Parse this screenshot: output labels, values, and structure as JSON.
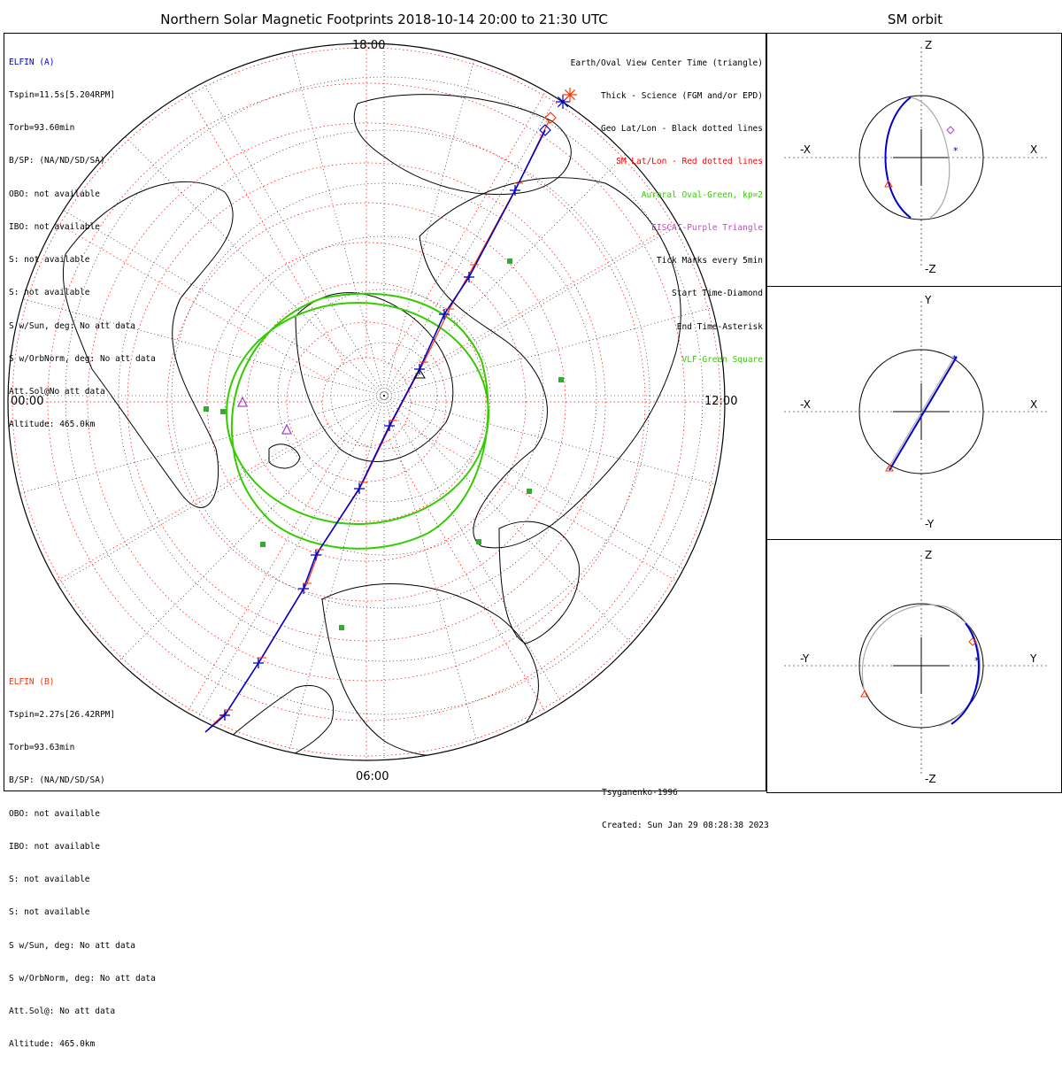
{
  "title": "Northern Solar Magnetic Footprints 2018-10-14 20:00 to 21:30 UTC",
  "orbit_title": "SM orbit",
  "elfin_a": {
    "name": "ELFIN (A)",
    "lines": [
      "Tspin=11.5s[5.204RPM]",
      "Torb=93.60min",
      "B/SP: (NA/ND/SD/SA)",
      "OBO: not available",
      "IBO: not available",
      "S: not available",
      "S: not available",
      "S w/Sun, deg: No att data",
      "S w/OrbNorm, deg: No att data",
      "Att.Sol@No att data",
      "Altitude: 465.0km"
    ]
  },
  "elfin_b": {
    "name": "ELFIN (B)",
    "lines": [
      "Tspin=2.27s[26.42RPM]",
      "Torb=93.63min",
      "B/SP: (NA/ND/SD/SA)",
      "OBO: not available",
      "IBO: not available",
      "S: not available",
      "S: not available",
      "S w/Sun, deg: No att data",
      "S w/OrbNorm, deg: No att data",
      "Att.Sol@: No att data",
      "Altitude: 465.0km"
    ]
  },
  "legend": [
    {
      "text": "Earth/Oval View Center Time (triangle)",
      "color": "#000000"
    },
    {
      "text": "Thick - Science (FGM and/or EPD)",
      "color": "#000000"
    },
    {
      "text": "Geo Lat/Lon - Black dotted lines",
      "color": "#000000"
    },
    {
      "text": "SM Lat/Lon - Red dotted lines",
      "color": "#ff0000"
    },
    {
      "text": "Auroral Oval-Green, kp=2",
      "color": "#33cc00"
    },
    {
      "text": "EISCAT-Purple Triangle",
      "color": "#cc44cc"
    },
    {
      "text": "Tick Marks every 5min",
      "color": "#000000"
    },
    {
      "text": "Start Time-Diamond",
      "color": "#000000"
    },
    {
      "text": "End Time-Asterisk",
      "color": "#000000"
    },
    {
      "text": "VLF-Green Square",
      "color": "#33cc00"
    }
  ],
  "mlt_labels": {
    "top": "18:00",
    "left": "00:00",
    "right": "12:00",
    "bottom": "06:00"
  },
  "footer": {
    "model": "Tsyganenko-1996",
    "created": "Created: Sun Jan 29 08:28:38 2023"
  },
  "orbit_panels": [
    {
      "up": "Z",
      "down": "-Z",
      "left": "-X",
      "right": "X"
    },
    {
      "up": "Y",
      "down": "-Y",
      "left": "-X",
      "right": "X"
    },
    {
      "up": "Z",
      "down": "-Z",
      "left": "-Y",
      "right": "Y"
    }
  ],
  "colors": {
    "elfin_a": "#0000cc",
    "elfin_b": "#ff3300",
    "grid_sm": "#ff0000",
    "oval": "#33cc00",
    "vlf": "#33aa33",
    "eiscat": "#aa44cc",
    "orbit_gray": "#aaaaaa"
  },
  "chart_data": [
    {
      "type": "scatter",
      "title": "Northern Solar Magnetic Footprints 2018-10-14 20:00 to 21:30 UTC",
      "projection": "polar (magnetic local time around the circle, SM latitude radially)",
      "mlt_tick_labels": [
        "18:00",
        "00:00",
        "12:00",
        "06:00"
      ],
      "auroral_oval": {
        "kp": 2
      },
      "series": [
        {
          "name": "ELFIN (A)",
          "tick_interval_min": 5,
          "start_marker": "diamond",
          "end_marker": "asterisk"
        },
        {
          "name": "ELFIN (B)",
          "tick_interval_min": 5,
          "start_marker": "diamond",
          "end_marker": "asterisk"
        }
      ],
      "vlf_stations_count": 8,
      "eiscat_sites_count": 2
    },
    {
      "type": "scatter",
      "title": "SM orbit",
      "panels": [
        {
          "horizontal": "X",
          "vertical": "Z"
        },
        {
          "horizontal": "X",
          "vertical": "Y"
        },
        {
          "horizontal": "Y",
          "vertical": "Z"
        }
      ]
    }
  ]
}
